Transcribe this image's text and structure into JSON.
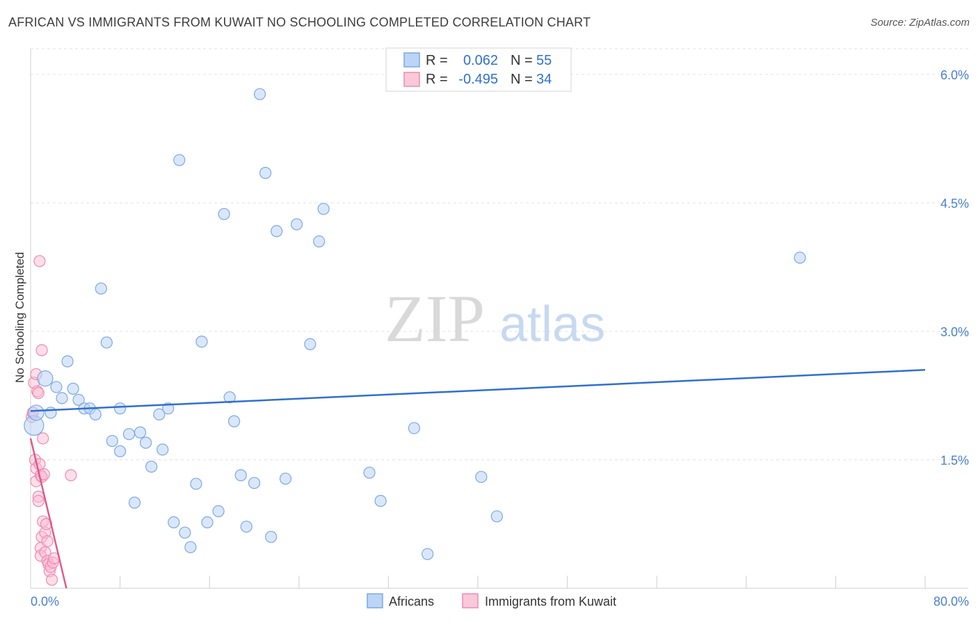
{
  "header": {
    "title": "AFRICAN VS IMMIGRANTS FROM KUWAIT NO SCHOOLING COMPLETED CORRELATION CHART",
    "source": "Source: ZipAtlas.com"
  },
  "watermark": {
    "zip": "ZIP",
    "atlas": "atlas"
  },
  "legend": {
    "r_label": "R =",
    "n_label": "N =",
    "rows": [
      {
        "r": "0.062",
        "n": "55"
      },
      {
        "r": "-0.495",
        "n": "34"
      }
    ]
  },
  "bottom_legend": {
    "africans": "Africans",
    "kuwait": "Immigrants from Kuwait"
  },
  "chart_data": {
    "type": "scatter",
    "title": "AFRICAN VS IMMIGRANTS FROM KUWAIT NO SCHOOLING COMPLETED CORRELATION CHART",
    "xlabel": "",
    "ylabel": "No Schooling Completed",
    "xlim": [
      0,
      80
    ],
    "ylim": [
      0,
      6.3
    ],
    "x_tick_labels": [
      "0.0%",
      "80.0%"
    ],
    "y_ticks": [
      1.5,
      3.0,
      4.5,
      6.0
    ],
    "y_tick_labels": [
      "1.5%",
      "3.0%",
      "4.5%",
      "6.0%"
    ],
    "grid": true,
    "colors": {
      "africans": "#7aa8e6",
      "kuwait": "#f08ab0",
      "africans_line": "#2f6fd0",
      "kuwait_line": "#e05a8a"
    },
    "series": [
      {
        "name": "Africans",
        "r": 0.062,
        "n": 55,
        "trend": {
          "x": [
            0,
            80
          ],
          "y": [
            2.07,
            2.55
          ]
        },
        "points": [
          [
            0.3,
            1.9
          ],
          [
            0.5,
            2.05
          ],
          [
            1.3,
            2.45
          ],
          [
            1.8,
            2.05
          ],
          [
            2.3,
            2.35
          ],
          [
            2.8,
            2.22
          ],
          [
            3.3,
            2.65
          ],
          [
            3.8,
            2.33
          ],
          [
            4.3,
            2.2
          ],
          [
            4.8,
            2.1
          ],
          [
            5.3,
            2.1
          ],
          [
            5.8,
            2.03
          ],
          [
            6.3,
            3.5
          ],
          [
            6.8,
            2.87
          ],
          [
            7.3,
            1.72
          ],
          [
            8.0,
            1.6
          ],
          [
            8.0,
            2.1
          ],
          [
            8.8,
            1.8
          ],
          [
            9.3,
            1.0
          ],
          [
            9.8,
            1.82
          ],
          [
            10.3,
            1.7
          ],
          [
            10.8,
            1.42
          ],
          [
            11.5,
            2.03
          ],
          [
            11.8,
            1.62
          ],
          [
            12.3,
            2.1
          ],
          [
            12.8,
            0.77
          ],
          [
            13.3,
            5.0
          ],
          [
            13.8,
            0.65
          ],
          [
            14.3,
            0.48
          ],
          [
            14.8,
            1.22
          ],
          [
            15.3,
            2.88
          ],
          [
            15.8,
            0.77
          ],
          [
            16.8,
            0.9
          ],
          [
            17.3,
            4.37
          ],
          [
            17.8,
            2.23
          ],
          [
            18.2,
            1.95
          ],
          [
            18.8,
            1.32
          ],
          [
            19.3,
            0.72
          ],
          [
            20.0,
            1.23
          ],
          [
            20.5,
            5.77
          ],
          [
            21.0,
            4.85
          ],
          [
            21.5,
            0.6
          ],
          [
            22.0,
            4.17
          ],
          [
            22.8,
            1.28
          ],
          [
            23.8,
            4.25
          ],
          [
            25.0,
            2.85
          ],
          [
            25.8,
            4.05
          ],
          [
            26.2,
            4.43
          ],
          [
            30.3,
            1.35
          ],
          [
            31.3,
            1.02
          ],
          [
            34.3,
            1.87
          ],
          [
            35.5,
            0.4
          ],
          [
            40.3,
            1.3
          ],
          [
            41.7,
            0.84
          ],
          [
            68.8,
            3.86
          ]
        ]
      },
      {
        "name": "Immigrants from Kuwait",
        "r": -0.495,
        "n": 34,
        "trend": {
          "x": [
            0,
            3.2
          ],
          "y": [
            1.75,
            0.0
          ]
        },
        "points": [
          [
            0.1,
            2.0
          ],
          [
            0.2,
            2.05
          ],
          [
            0.3,
            2.4
          ],
          [
            0.4,
            1.5
          ],
          [
            0.5,
            2.5
          ],
          [
            0.5,
            1.4
          ],
          [
            0.5,
            1.25
          ],
          [
            0.6,
            2.3
          ],
          [
            0.7,
            2.28
          ],
          [
            0.7,
            1.07
          ],
          [
            0.7,
            1.02
          ],
          [
            0.8,
            3.82
          ],
          [
            0.8,
            1.45
          ],
          [
            0.9,
            1.32
          ],
          [
            0.9,
            0.47
          ],
          [
            0.9,
            0.38
          ],
          [
            1.0,
            2.78
          ],
          [
            1.0,
            1.3
          ],
          [
            1.0,
            0.6
          ],
          [
            1.1,
            1.75
          ],
          [
            1.1,
            0.78
          ],
          [
            1.2,
            1.33
          ],
          [
            1.3,
            0.65
          ],
          [
            1.3,
            0.42
          ],
          [
            1.4,
            0.75
          ],
          [
            1.5,
            0.55
          ],
          [
            1.5,
            0.32
          ],
          [
            1.6,
            0.28
          ],
          [
            1.7,
            0.2
          ],
          [
            1.8,
            0.25
          ],
          [
            1.9,
            0.1
          ],
          [
            2.0,
            0.3
          ],
          [
            2.1,
            0.35
          ],
          [
            3.6,
            1.32
          ]
        ]
      }
    ]
  }
}
